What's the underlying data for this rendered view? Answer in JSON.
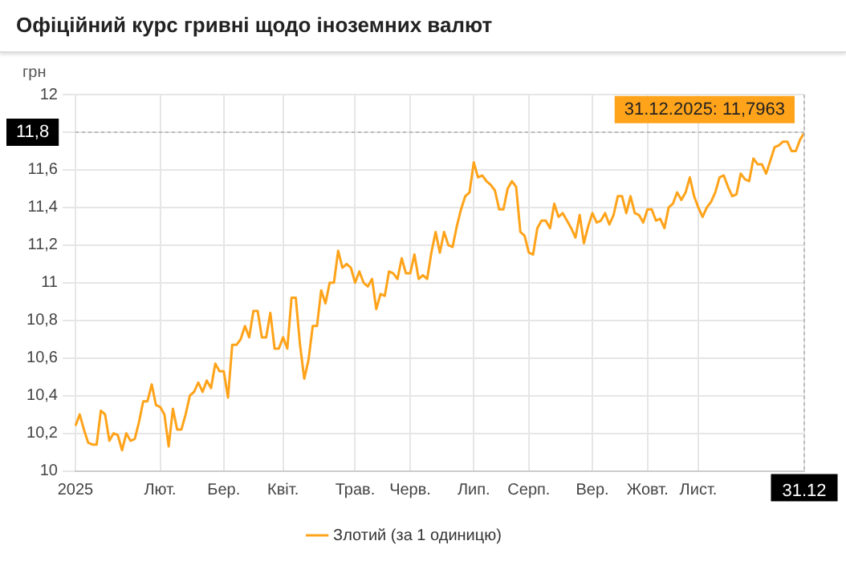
{
  "chart_data": {
    "type": "line",
    "title": "Офіційний курс гривні щодо іноземних валют",
    "ylabel": "грн",
    "legend": "bottom",
    "grid": true,
    "marker": "none",
    "line_style": "solid",
    "ylim": [
      10,
      12
    ],
    "yticks": [
      10,
      {
        "value": 10.2,
        "label": "10,2"
      },
      {
        "value": 10.4,
        "label": "10,4"
      },
      {
        "value": 10.6,
        "label": "10,6"
      },
      {
        "value": 10.8,
        "label": "10,8"
      },
      11,
      {
        "value": 11.2,
        "label": "11,2"
      },
      {
        "value": 11.4,
        "label": "11,4"
      },
      {
        "value": 11.6,
        "label": "11,6"
      },
      {
        "value": 11.8,
        "label": null
      },
      12
    ],
    "categories": [
      "2025",
      null,
      null,
      null,
      null,
      null,
      null,
      null,
      null,
      null,
      null,
      null,
      null,
      null,
      null,
      null,
      null,
      null,
      null,
      null,
      "Лют.",
      null,
      null,
      null,
      null,
      null,
      null,
      null,
      null,
      null,
      null,
      null,
      null,
      null,
      null,
      "Бер.",
      null,
      null,
      null,
      null,
      null,
      null,
      null,
      null,
      null,
      null,
      null,
      null,
      null,
      "Квіт.",
      null,
      null,
      null,
      null,
      null,
      null,
      null,
      null,
      null,
      null,
      null,
      null,
      null,
      null,
      null,
      null,
      "Трав.",
      null,
      null,
      null,
      null,
      null,
      null,
      null,
      null,
      null,
      null,
      null,
      null,
      "Черв.",
      null,
      null,
      null,
      null,
      null,
      null,
      null,
      null,
      null,
      null,
      null,
      null,
      null,
      null,
      "Лип.",
      null,
      null,
      null,
      null,
      null,
      null,
      null,
      null,
      null,
      null,
      null,
      null,
      "Серп.",
      null,
      null,
      null,
      null,
      null,
      null,
      null,
      null,
      null,
      null,
      null,
      null,
      null,
      null,
      "Вер.",
      null,
      null,
      null,
      null,
      null,
      null,
      null,
      null,
      null,
      null,
      null,
      null,
      "Жовт.",
      null,
      null,
      null,
      null,
      null,
      null,
      null,
      null,
      null,
      null,
      null,
      "Лист.",
      null,
      null,
      null,
      null,
      null,
      null,
      null,
      null,
      null,
      null,
      null,
      null,
      null,
      null,
      null,
      null,
      null,
      null,
      null,
      null,
      null,
      null,
      null,
      null,
      "31.12"
    ],
    "ref_lines": [
      {
        "axis": "y",
        "value": 11.8,
        "label": "11,8",
        "color": "#bbbbbb",
        "line_style": "dotted"
      },
      {
        "axis": "x",
        "value": "31.12",
        "color": "#bbbbbb",
        "line_style": "dotted"
      }
    ],
    "annotations": [
      {
        "text": "31.12.2025: 11,7963",
        "x": "31.12",
        "y": 11.7963
      }
    ],
    "series": [
      {
        "name": "Злотий (за 1 одиницю)",
        "color": "#ffa31a",
        "values": [
          10.24,
          10.3,
          10.22,
          10.15,
          10.14,
          10.14,
          10.32,
          10.3,
          10.16,
          10.2,
          10.19,
          10.11,
          10.2,
          10.16,
          10.17,
          10.26,
          10.37,
          10.37,
          10.46,
          10.35,
          10.34,
          10.3,
          10.13,
          10.33,
          10.22,
          10.22,
          10.3,
          10.4,
          10.42,
          10.47,
          10.42,
          10.48,
          10.44,
          10.57,
          10.53,
          10.53,
          10.39,
          10.67,
          10.67,
          10.7,
          10.77,
          10.71,
          10.85,
          10.85,
          10.71,
          10.71,
          10.84,
          10.65,
          10.65,
          10.71,
          10.65,
          10.92,
          10.92,
          10.67,
          10.49,
          10.59,
          10.77,
          10.77,
          10.96,
          10.89,
          11.0,
          11.0,
          11.17,
          11.08,
          11.1,
          11.08,
          11.0,
          11.06,
          11.0,
          10.98,
          11.02,
          10.86,
          10.94,
          10.93,
          11.06,
          11.05,
          11.02,
          11.13,
          11.05,
          11.05,
          11.15,
          11.02,
          11.04,
          11.02,
          11.16,
          11.27,
          11.16,
          11.27,
          11.2,
          11.19,
          11.3,
          11.39,
          11.46,
          11.48,
          11.64,
          11.56,
          11.57,
          11.54,
          11.52,
          11.49,
          11.39,
          11.39,
          11.5,
          11.54,
          11.51,
          11.27,
          11.25,
          11.16,
          11.15,
          11.29,
          11.33,
          11.33,
          11.29,
          11.42,
          11.35,
          11.37,
          11.33,
          11.29,
          11.24,
          11.36,
          11.21,
          11.3,
          11.37,
          11.32,
          11.33,
          11.37,
          11.31,
          11.36,
          11.46,
          11.46,
          11.37,
          11.46,
          11.37,
          11.36,
          11.32,
          11.39,
          11.39,
          11.33,
          11.34,
          11.29,
          11.4,
          11.42,
          11.48,
          11.44,
          11.48,
          11.56,
          11.46,
          11.4,
          11.35,
          11.4,
          11.43,
          11.48,
          11.56,
          11.57,
          11.51,
          11.46,
          11.47,
          11.58,
          11.55,
          11.54,
          11.66,
          11.63,
          11.63,
          11.58,
          11.65,
          11.72,
          11.73,
          11.75,
          11.75,
          11.7,
          11.7,
          11.76,
          11.7963
        ]
      }
    ]
  }
}
